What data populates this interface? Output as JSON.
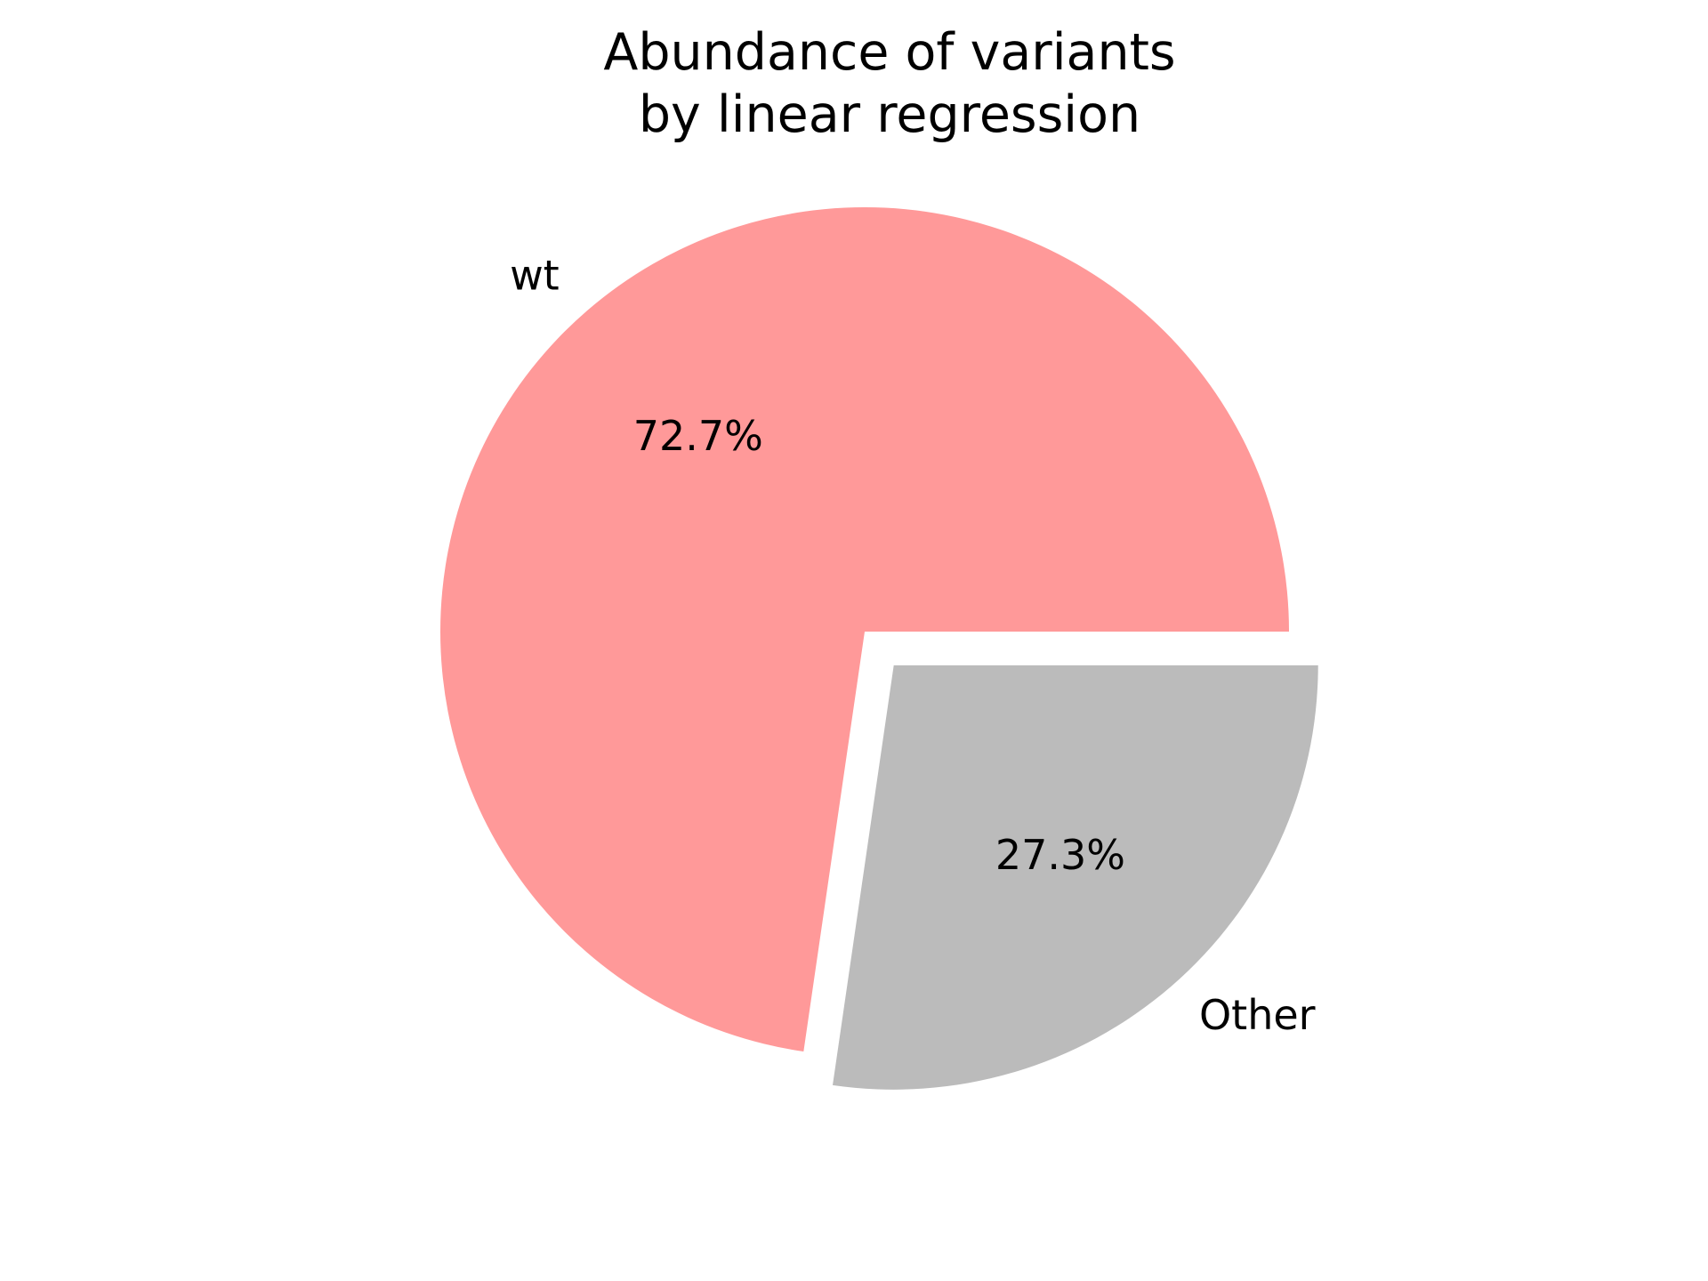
{
  "chart_data": {
    "type": "pie",
    "title": "Abundance of variants\nby linear regression",
    "title_lines": [
      "Abundance of variants",
      "by linear regression"
    ],
    "categories": [
      "wt",
      "Other"
    ],
    "values": [
      72.7,
      27.3
    ],
    "percent_labels": [
      "72.7%",
      "27.3%"
    ],
    "colors": [
      "#ff9999",
      "#bbbbbb"
    ],
    "exploded": [
      false,
      true
    ],
    "start_angle_deg": 0,
    "direction": "counterclockwise",
    "legend": "none"
  }
}
